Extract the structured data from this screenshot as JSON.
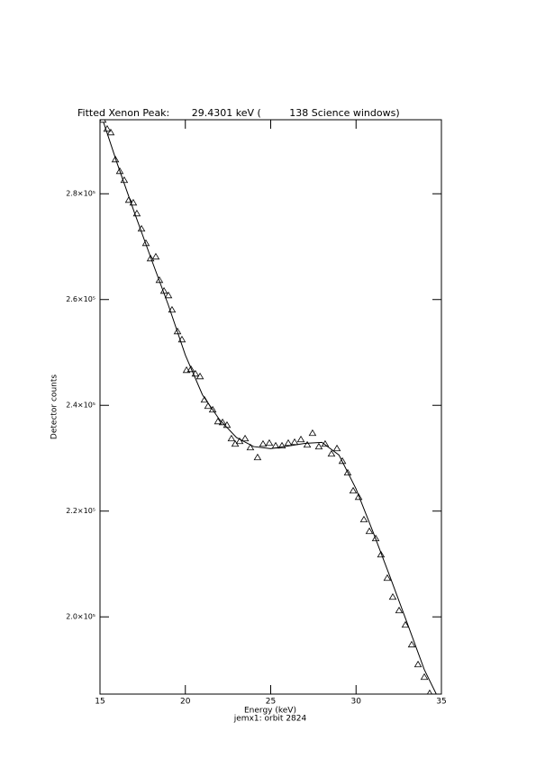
{
  "chart_data": {
    "type": "scatter",
    "title": "Fitted Xenon Peak:       29.4301 keV (         138 Science windows)",
    "x_label": "Energy (keV)",
    "subtitle": "jemx1: orbit 2824",
    "y_label": "Detector counts",
    "xlim": [
      15,
      35
    ],
    "xticks": [
      15,
      20,
      25,
      30,
      35
    ],
    "ylim": [
      185400,
      294000
    ],
    "yticks": [
      {
        "value": 200000,
        "label": "2.0×10⁵"
      },
      {
        "value": 220000,
        "label": "2.2×10⁵"
      },
      {
        "value": 240000,
        "label": "2.4×10⁵"
      },
      {
        "value": 260000,
        "label": "2.6×10⁵"
      },
      {
        "value": 280000,
        "label": "2.8×10⁵"
      }
    ],
    "series": [
      {
        "type": "scatter",
        "marker": "triangle",
        "color": "#000000",
        "x": [
          15.16,
          15.42,
          15.63,
          15.9,
          16.16,
          16.42,
          16.69,
          16.95,
          17.16,
          17.43,
          17.69,
          17.96,
          18.27,
          18.48,
          18.75,
          19.01,
          19.22,
          19.54,
          19.8,
          20.07,
          20.33,
          20.59,
          20.86,
          21.12,
          21.33,
          21.6,
          21.91,
          22.18,
          22.44,
          22.7,
          22.92,
          23.18,
          23.5,
          23.81,
          24.23,
          24.55,
          24.92,
          25.29,
          25.66,
          26.03,
          26.4,
          26.77,
          27.14,
          27.45,
          27.82,
          28.19,
          28.56,
          28.88,
          29.2,
          29.51,
          29.83,
          30.15,
          30.46,
          30.78,
          31.15,
          31.46,
          31.83,
          32.15,
          32.52,
          32.89,
          33.26,
          33.63,
          34.0,
          34.31
        ],
        "values": [
          293950,
          292250,
          291570,
          286460,
          284250,
          282550,
          278800,
          278290,
          276250,
          273360,
          270630,
          267740,
          268080,
          263650,
          261610,
          260760,
          258040,
          253950,
          252420,
          246630,
          246800,
          245950,
          245440,
          241020,
          239830,
          239150,
          236930,
          236760,
          236250,
          233700,
          232680,
          233190,
          233700,
          232000,
          230130,
          232680,
          232850,
          232340,
          232340,
          232850,
          233020,
          233530,
          232510,
          234720,
          232170,
          232680,
          230810,
          231830,
          229440,
          227230,
          223830,
          222630,
          218380,
          216170,
          214810,
          211740,
          207320,
          203740,
          201190,
          198470,
          194730,
          190980,
          188600,
          185530
        ]
      },
      {
        "type": "line",
        "color": "#000000",
        "x": [
          15.2,
          16,
          17,
          18,
          19,
          20,
          21,
          22,
          23,
          24,
          25,
          26,
          27,
          28,
          29,
          30,
          31,
          32,
          33,
          34,
          34.7
        ],
        "values": [
          293600,
          285800,
          276600,
          267700,
          259000,
          249500,
          242000,
          237300,
          233900,
          232200,
          231800,
          232300,
          232800,
          233000,
          230600,
          224200,
          216000,
          207500,
          198800,
          190000,
          185400
        ]
      }
    ]
  }
}
